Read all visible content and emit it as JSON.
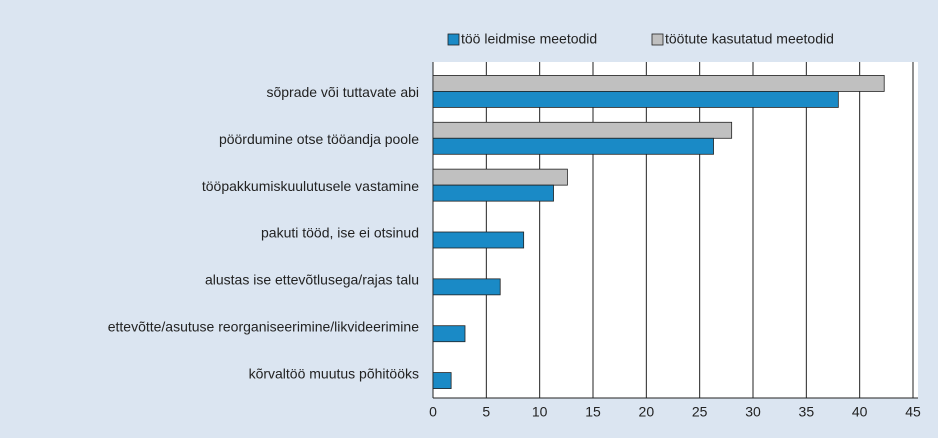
{
  "chart_data": {
    "type": "hbar",
    "categories": [
      "sõprade või tuttavate abi",
      "pöördumine otse tööandja poole",
      "tööpakkumiskuulutusele vastamine",
      "pakuti tööd, ise ei otsinud",
      "alustas ise ettevõtlusega/rajas talu",
      "ettevõtte/asutuse reorganiseerimine/likvideerimine",
      "kõrvaltöö muutus põhitööks"
    ],
    "series": [
      {
        "name": "töö leidmise meetodid",
        "color": "#1a8ac6",
        "values": [
          38,
          26.3,
          11.3,
          8.5,
          6.3,
          3,
          1.7
        ]
      },
      {
        "name": "töötute kasutatud meetodid",
        "color": "#c0c0c0",
        "values": [
          42.3,
          28,
          12.6,
          null,
          null,
          null,
          null
        ]
      }
    ],
    "xlim": [
      0,
      45
    ],
    "xticks": [
      0,
      5,
      10,
      15,
      20,
      25,
      30,
      35,
      40,
      45
    ],
    "grid": true
  }
}
